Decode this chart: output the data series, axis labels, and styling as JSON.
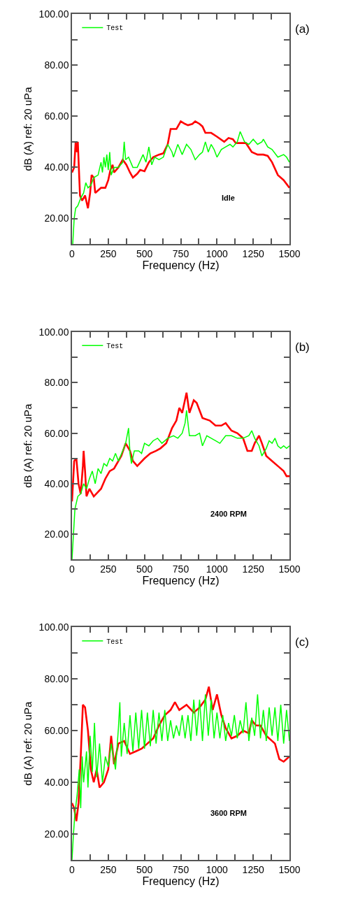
{
  "chart_data": [
    {
      "type": "line",
      "xlabel": "Frequency (Hz)",
      "ylabel": "dB (A) ref: 20 uPa",
      "annotations": [
        "(a)",
        "Idle"
      ],
      "legend": "top left",
      "marker": "none",
      "line_style": "solid",
      "xlim": [
        0,
        1500
      ],
      "ylim": [
        10,
        100
      ],
      "xticks": [
        0,
        {
          "value": 125,
          "label": null
        },
        250,
        {
          "value": 375,
          "label": null
        },
        500,
        {
          "value": 625,
          "label": null
        },
        750,
        {
          "value": 875,
          "label": null
        },
        1000,
        {
          "value": 1125,
          "label": null
        },
        1250,
        {
          "value": 1375,
          "label": null
        },
        1500
      ],
      "yticks": [
        {
          "value": 20,
          "label": "20.00"
        },
        {
          "value": 30,
          "label": null
        },
        {
          "value": 40,
          "label": "40.00"
        },
        {
          "value": 50,
          "label": null
        },
        {
          "value": 60,
          "label": "60.00"
        },
        {
          "value": 70,
          "label": null
        },
        {
          "value": 80,
          "label": "80.00"
        },
        {
          "value": 90,
          "label": null
        },
        {
          "value": 100,
          "label": "100.00"
        }
      ],
      "series": [
        {
          "color": "#ff0000",
          "x": [
            0,
            15,
            25,
            35,
            40,
            55,
            70,
            90,
            110,
            125,
            135,
            150,
            160,
            200,
            230,
            250,
            265,
            280,
            290,
            320,
            350,
            375,
            400,
            420,
            450,
            470,
            500,
            530,
            560,
            600,
            630,
            660,
            680,
            720,
            750,
            780,
            800,
            830,
            850,
            880,
            900,
            920,
            960,
            1000,
            1050,
            1080,
            1110,
            1130,
            1170,
            1200,
            1240,
            1280,
            1320,
            1350,
            1380,
            1420,
            1460,
            1500
          ],
          "values": [
            38,
            40,
            50,
            46,
            50,
            29,
            27,
            29,
            24,
            30,
            37,
            36,
            30,
            32,
            32,
            35,
            39,
            41,
            38,
            40,
            43,
            41,
            38,
            36,
            37.5,
            39,
            38.5,
            42,
            44,
            45,
            45.5,
            49,
            55,
            55,
            58,
            57,
            56.5,
            57,
            58,
            57,
            56,
            53.5,
            53.5,
            52,
            50,
            51.5,
            51,
            49.5,
            49.5,
            49.5,
            46,
            45,
            45,
            44.5,
            42,
            37,
            35,
            32
          ]
        },
        {
          "name": "Test",
          "color": "#00ff00",
          "x": [
            5,
            15,
            25,
            40,
            60,
            80,
            95,
            110,
            130,
            150,
            180,
            200,
            210,
            220,
            230,
            240,
            250,
            260,
            270,
            290,
            320,
            350,
            360,
            370,
            390,
            420,
            450,
            490,
            510,
            530,
            550,
            570,
            600,
            630,
            660,
            690,
            700,
            730,
            760,
            790,
            820,
            850,
            880,
            900,
            920,
            940,
            960,
            980,
            1000,
            1030,
            1060,
            1090,
            1110,
            1140,
            1160,
            1190,
            1220,
            1250,
            1280,
            1310,
            1320,
            1350,
            1380,
            1420,
            1460,
            1480,
            1500
          ],
          "values": [
            10,
            20,
            24,
            25,
            28,
            30,
            34,
            32,
            33,
            36,
            37,
            42,
            38,
            44,
            40,
            45,
            39,
            46,
            37,
            40,
            40,
            42,
            50,
            43,
            44,
            40,
            40,
            45,
            42,
            48,
            41,
            44,
            43,
            44,
            49,
            46,
            44,
            49,
            45,
            49,
            47,
            43,
            45,
            46,
            50,
            46,
            49,
            47,
            44,
            47,
            48,
            49,
            48,
            50,
            54,
            50,
            49,
            51,
            49,
            50,
            51,
            48,
            47,
            44,
            45,
            44,
            42
          ]
        }
      ]
    },
    {
      "type": "line",
      "xlabel": "Frequency (Hz)",
      "ylabel": "dB (A) ref: 20 uPa",
      "annotations": [
        "(b)",
        "2400 RPM"
      ],
      "legend": "top left",
      "marker": "none",
      "line_style": "solid",
      "xlim": [
        0,
        1500
      ],
      "ylim": [
        10,
        100
      ],
      "xticks": [
        0,
        {
          "value": 125,
          "label": null
        },
        250,
        {
          "value": 375,
          "label": null
        },
        500,
        {
          "value": 625,
          "label": null
        },
        750,
        {
          "value": 875,
          "label": null
        },
        1000,
        {
          "value": 1125,
          "label": null
        },
        1250,
        {
          "value": 1375,
          "label": null
        },
        1500
      ],
      "yticks": [
        {
          "value": 20,
          "label": "20.00"
        },
        {
          "value": 30,
          "label": null
        },
        {
          "value": 40,
          "label": "40.00"
        },
        {
          "value": 50,
          "label": null
        },
        {
          "value": 60,
          "label": "60.00"
        },
        {
          "value": 70,
          "label": null
        },
        {
          "value": 80,
          "label": "80.00"
        },
        {
          "value": 90,
          "label": null
        },
        {
          "value": 100,
          "label": "100.00"
        }
      ],
      "series": [
        {
          "color": "#ff0000",
          "x": [
            0,
            15,
            30,
            45,
            60,
            75,
            80,
            90,
            100,
            120,
            150,
            200,
            230,
            260,
            290,
            340,
            370,
            400,
            420,
            450,
            500,
            540,
            580,
            610,
            650,
            690,
            720,
            740,
            760,
            790,
            810,
            840,
            860,
            900,
            950,
            990,
            1030,
            1060,
            1100,
            1140,
            1180,
            1210,
            1240,
            1260,
            1290,
            1310,
            1340,
            1380,
            1420,
            1460,
            1480,
            1500
          ],
          "values": [
            33,
            49,
            50,
            40,
            36,
            47,
            53,
            45,
            35,
            38,
            35,
            38,
            42,
            45,
            46,
            51,
            56,
            53,
            49,
            47,
            50,
            52,
            53,
            54,
            56,
            62,
            65,
            70,
            68,
            76,
            68,
            73,
            72,
            66,
            65,
            63,
            63,
            64,
            61,
            60,
            58,
            53,
            53,
            56,
            59,
            56,
            51,
            49,
            47,
            45,
            43,
            43
          ]
        },
        {
          "name": "Test",
          "color": "#00ff00",
          "x": [
            0,
            10,
            20,
            40,
            60,
            80,
            100,
            120,
            140,
            160,
            180,
            200,
            220,
            240,
            260,
            280,
            300,
            320,
            350,
            370,
            390,
            400,
            410,
            430,
            460,
            480,
            500,
            530,
            560,
            590,
            620,
            660,
            700,
            730,
            760,
            780,
            790,
            810,
            850,
            880,
            900,
            930,
            960,
            990,
            1020,
            1060,
            1100,
            1140,
            1180,
            1220,
            1240,
            1260,
            1290,
            1310,
            1340,
            1360,
            1380,
            1400,
            1420,
            1440,
            1460,
            1480,
            1500
          ],
          "values": [
            10,
            20,
            30,
            35,
            36,
            40,
            38,
            42,
            45,
            40,
            46,
            44,
            48,
            47,
            50,
            49,
            52,
            49,
            53,
            56,
            62,
            52,
            48,
            53,
            53,
            52,
            56,
            55,
            57,
            58,
            56,
            58,
            59,
            58,
            60,
            64,
            69,
            59,
            59,
            60,
            55,
            59,
            58,
            57,
            56,
            59,
            59,
            58,
            58,
            59,
            61,
            58,
            55,
            51,
            54,
            57,
            56,
            58,
            55,
            54,
            55,
            54,
            55
          ]
        }
      ]
    },
    {
      "type": "line",
      "xlabel": "Frequency (Hz)",
      "ylabel": "dB (A) ref: 20 uPa",
      "annotations": [
        "(c)",
        "3600 RPM"
      ],
      "legend": "top left",
      "marker": "none",
      "line_style": "solid",
      "xlim": [
        0,
        1500
      ],
      "ylim": [
        10,
        100
      ],
      "xticks": [
        0,
        {
          "value": 125,
          "label": null
        },
        250,
        {
          "value": 375,
          "label": null
        },
        500,
        {
          "value": 625,
          "label": null
        },
        750,
        {
          "value": 875,
          "label": null
        },
        1000,
        {
          "value": 1125,
          "label": null
        },
        1250,
        {
          "value": 1375,
          "label": null
        },
        1500
      ],
      "yticks": [
        {
          "value": 20,
          "label": "20.00"
        },
        {
          "value": 30,
          "label": null
        },
        {
          "value": 40,
          "label": "40.00"
        },
        {
          "value": 50,
          "label": null
        },
        {
          "value": 60,
          "label": "60.00"
        },
        {
          "value": 70,
          "label": null
        },
        {
          "value": 80,
          "label": "80.00"
        },
        {
          "value": 90,
          "label": null
        },
        {
          "value": 100,
          "label": "100.00"
        }
      ],
      "series": [
        {
          "color": "#ff0000",
          "x": [
            0,
            15,
            30,
            45,
            60,
            75,
            90,
            110,
            130,
            150,
            170,
            190,
            220,
            250,
            270,
            290,
            320,
            360,
            400,
            440,
            480,
            520,
            560,
            600,
            640,
            680,
            710,
            740,
            790,
            840,
            880,
            920,
            944,
            970,
            1000,
            1030,
            1060,
            1100,
            1140,
            1180,
            1220,
            1240,
            1270,
            1300,
            1340,
            1400,
            1430,
            1460,
            1480,
            1500
          ],
          "values": [
            32,
            30,
            25,
            32,
            50,
            70,
            69,
            60,
            45,
            40,
            45,
            38,
            40,
            45,
            58,
            47,
            55,
            56,
            51,
            52,
            53,
            55,
            57,
            62,
            66,
            68,
            71,
            68,
            70,
            67,
            69,
            72,
            77,
            68,
            74,
            66,
            61,
            57,
            58,
            60,
            59,
            64,
            62,
            62,
            58,
            55,
            49,
            48,
            49,
            50
          ]
        },
        {
          "name": "Test",
          "color": "#00ff00",
          "x": [
            0,
            10,
            20,
            35,
            50,
            60,
            70,
            80,
            100,
            110,
            125,
            140,
            155,
            170,
            190,
            210,
            230,
            250,
            270,
            300,
            320,
            330,
            340,
            360,
            380,
            400,
            420,
            440,
            460,
            480,
            500,
            520,
            540,
            560,
            580,
            600,
            620,
            640,
            660,
            680,
            700,
            720,
            740,
            760,
            780,
            800,
            820,
            840,
            860,
            880,
            900,
            920,
            940,
            960,
            980,
            1000,
            1020,
            1040,
            1060,
            1080,
            1100,
            1120,
            1140,
            1160,
            1180,
            1200,
            1220,
            1240,
            1260,
            1280,
            1300,
            1320,
            1340,
            1360,
            1380,
            1400,
            1420,
            1440,
            1460,
            1480,
            1500
          ],
          "values": [
            10,
            20,
            28,
            35,
            45,
            30,
            50,
            40,
            52,
            38,
            58,
            44,
            63,
            42,
            55,
            40,
            50,
            46,
            55,
            45,
            61,
            71,
            50,
            63,
            51,
            66,
            52,
            67,
            53,
            68,
            53,
            67,
            54,
            68,
            55,
            67,
            56,
            68,
            56,
            64,
            57,
            62,
            58,
            66,
            57,
            66,
            56,
            72,
            58,
            72,
            56,
            74,
            58,
            72,
            57,
            67,
            57,
            66,
            56,
            63,
            58,
            66,
            57,
            64,
            59,
            71,
            56,
            65,
            58,
            74,
            57,
            68,
            56,
            69,
            58,
            69,
            56,
            70,
            55,
            68,
            56
          ]
        }
      ]
    }
  ]
}
